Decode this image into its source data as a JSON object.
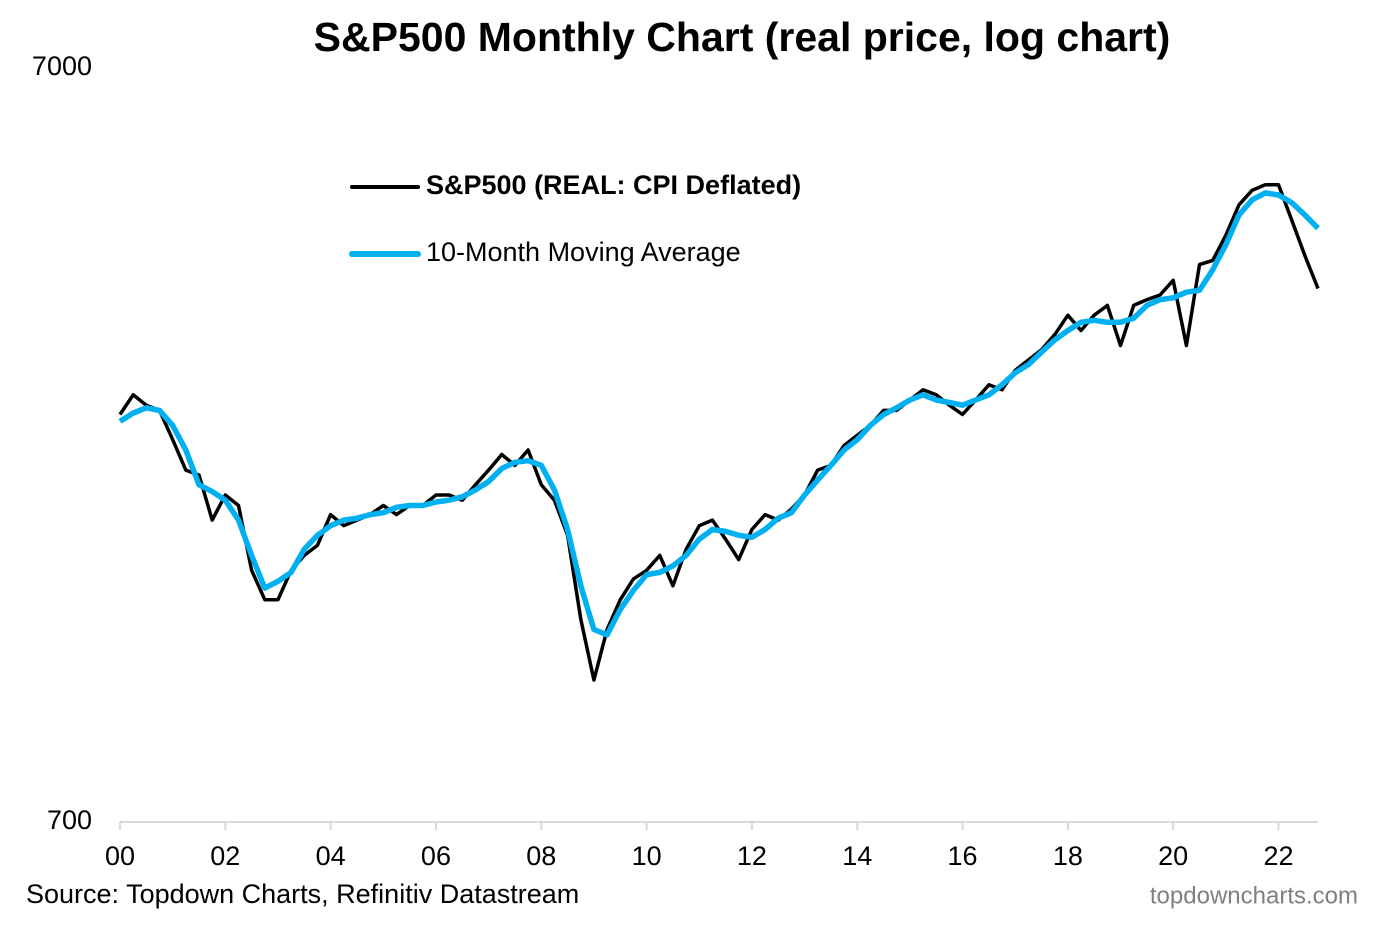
{
  "chart_data": {
    "type": "line",
    "title": "S&P500 Monthly Chart (real price, log chart)",
    "source": "Source: Topdown Charts, Refinitiv Datastream",
    "watermark": "topdowncharts.com",
    "log_scale": true,
    "grid": false,
    "legend": "upper left",
    "x": [
      2000,
      2000.25,
      2000.5,
      2000.75,
      2001,
      2001.25,
      2001.5,
      2001.75,
      2002,
      2002.25,
      2002.5,
      2002.75,
      2003,
      2003.25,
      2003.5,
      2003.75,
      2004,
      2004.25,
      2004.5,
      2004.75,
      2005,
      2005.25,
      2005.5,
      2005.75,
      2006,
      2006.25,
      2006.5,
      2006.75,
      2007,
      2007.25,
      2007.5,
      2007.75,
      2008,
      2008.25,
      2008.5,
      2008.75,
      2009,
      2009.25,
      2009.5,
      2009.75,
      2010,
      2010.25,
      2010.5,
      2010.75,
      2011,
      2011.25,
      2011.5,
      2011.75,
      2012,
      2012.25,
      2012.5,
      2012.75,
      2013,
      2013.25,
      2013.5,
      2013.75,
      2014,
      2014.25,
      2014.5,
      2014.75,
      2015,
      2015.25,
      2015.5,
      2015.75,
      2016,
      2016.25,
      2016.5,
      2016.75,
      2017,
      2017.25,
      2017.5,
      2017.75,
      2018,
      2018.25,
      2018.5,
      2018.75,
      2019,
      2019.25,
      2019.5,
      2019.75,
      2020,
      2020.25,
      2020.5,
      2020.75,
      2021,
      2021.25,
      2021.5,
      2021.75,
      2022,
      2022.25,
      2022.5,
      2022.75
    ],
    "series": [
      {
        "name": "S&P500 (REAL: CPI Deflated)",
        "color": "#000000",
        "values": [
          2430,
          2580,
          2500,
          2460,
          2250,
          2050,
          2020,
          1760,
          1900,
          1840,
          1510,
          1380,
          1380,
          1510,
          1580,
          1630,
          1790,
          1730,
          1760,
          1790,
          1840,
          1790,
          1840,
          1840,
          1900,
          1900,
          1870,
          1960,
          2050,
          2150,
          2080,
          2180,
          1960,
          1870,
          1680,
          1300,
          1080,
          1260,
          1380,
          1470,
          1510,
          1580,
          1440,
          1610,
          1730,
          1760,
          1660,
          1560,
          1710,
          1790,
          1760,
          1820,
          1900,
          2050,
          2080,
          2210,
          2280,
          2350,
          2460,
          2460,
          2540,
          2620,
          2580,
          2500,
          2430,
          2540,
          2660,
          2620,
          2780,
          2870,
          2960,
          3100,
          3290,
          3140,
          3290,
          3390,
          3000,
          3390,
          3450,
          3500,
          3660,
          3000,
          3840,
          3890,
          4200,
          4610,
          4820,
          4900,
          4900,
          4400,
          3950,
          3570
        ]
      },
      {
        "name": "10-Month Moving Average",
        "color": "#00b0f0",
        "values": [
          2380,
          2440,
          2480,
          2460,
          2350,
          2180,
          1960,
          1920,
          1870,
          1760,
          1580,
          1430,
          1460,
          1500,
          1610,
          1680,
          1730,
          1760,
          1770,
          1790,
          1800,
          1830,
          1840,
          1840,
          1860,
          1870,
          1890,
          1930,
          1980,
          2060,
          2100,
          2110,
          2080,
          1930,
          1710,
          1440,
          1260,
          1240,
          1340,
          1420,
          1490,
          1500,
          1530,
          1580,
          1660,
          1710,
          1700,
          1680,
          1670,
          1710,
          1770,
          1800,
          1900,
          1990,
          2080,
          2180,
          2250,
          2350,
          2430,
          2480,
          2540,
          2580,
          2540,
          2520,
          2500,
          2540,
          2580,
          2660,
          2760,
          2830,
          2940,
          3050,
          3140,
          3220,
          3240,
          3220,
          3220,
          3260,
          3390,
          3450,
          3470,
          3530,
          3550,
          3780,
          4080,
          4470,
          4680,
          4780,
          4750,
          4640,
          4470,
          4290
        ]
      }
    ],
    "xlim": [
      2000,
      2022.75
    ],
    "xticks": [
      {
        "value": 2000,
        "label": "00"
      },
      {
        "value": 2002,
        "label": "02"
      },
      {
        "value": 2004,
        "label": "04"
      },
      {
        "value": 2006,
        "label": "06"
      },
      {
        "value": 2008,
        "label": "08"
      },
      {
        "value": 2010,
        "label": "10"
      },
      {
        "value": 2012,
        "label": "12"
      },
      {
        "value": 2014,
        "label": "14"
      },
      {
        "value": 2016,
        "label": "16"
      },
      {
        "value": 2018,
        "label": "18"
      },
      {
        "value": 2020,
        "label": "20"
      },
      {
        "value": 2022,
        "label": "22"
      }
    ],
    "ylim": [
      700,
      7000
    ],
    "yticks": [
      700,
      7000
    ]
  }
}
